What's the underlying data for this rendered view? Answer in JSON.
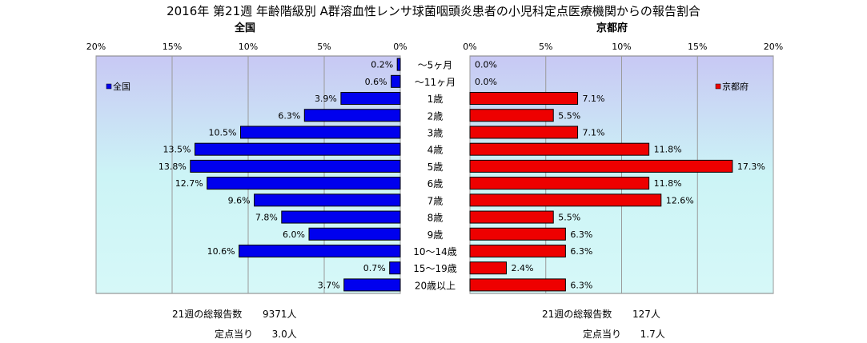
{
  "title": "2016年 第21週 年齢階級別 A群溶血性レンサ球菌咽頭炎患者の小児科定点医療機関からの報告割合",
  "left_panel": {
    "subtitle": "全国",
    "legend": "全国",
    "color": "#0000ee"
  },
  "right_panel": {
    "subtitle": "京都府",
    "legend": "京都府",
    "color": "#ee0000"
  },
  "footer": {
    "left": {
      "total_label": "21週の総報告数",
      "total_value": "9371人",
      "per_label": "定点当り",
      "per_value": "3.0人"
    },
    "right": {
      "total_label": "21週の総報告数",
      "total_value": "127人",
      "per_label": "定点当り",
      "per_value": "1.7人"
    }
  },
  "chart_data": {
    "type": "bar",
    "orientation": "horizontal-butterfly",
    "categories": [
      "～5ヶ月",
      "～11ヶ月",
      "1歳",
      "2歳",
      "3歳",
      "4歳",
      "5歳",
      "6歳",
      "7歳",
      "8歳",
      "9歳",
      "10～14歳",
      "15～19歳",
      "20歳以上"
    ],
    "series": [
      {
        "name": "全国",
        "values": [
          0.2,
          0.6,
          3.9,
          6.3,
          10.5,
          13.5,
          13.8,
          12.7,
          9.6,
          7.8,
          6.0,
          10.6,
          0.7,
          3.7
        ]
      },
      {
        "name": "京都府",
        "values": [
          0.0,
          0.0,
          7.1,
          5.5,
          7.1,
          11.8,
          17.3,
          11.8,
          12.6,
          5.5,
          6.3,
          6.3,
          2.4,
          6.3
        ]
      }
    ],
    "left_ticks": [
      "20%",
      "15%",
      "10%",
      "5%",
      "0%"
    ],
    "right_ticks": [
      "0%",
      "5%",
      "10%",
      "15%",
      "20%"
    ],
    "xlim": [
      0,
      20
    ],
    "grid": true,
    "legend_left": "top-left",
    "legend_right": "top-right"
  }
}
